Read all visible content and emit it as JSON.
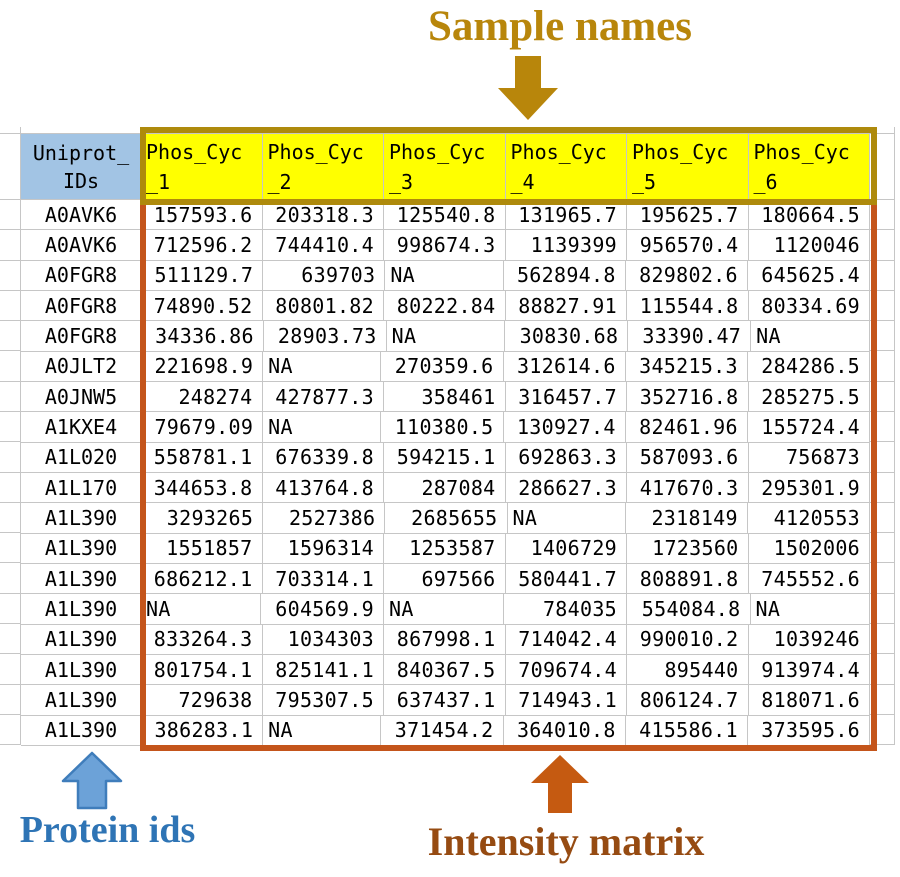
{
  "annotations": {
    "top_label": "Sample names",
    "bottom_left_label": "Protein ids",
    "bottom_center_label": "Intensity matrix"
  },
  "colors": {
    "title_gold": "#B8860B",
    "header_box_border": "#AE8A0C",
    "matrix_box_border": "#C4551B",
    "header_yellow": "#FFFF00",
    "id_header_blue": "#A2C4E4",
    "protein_label_blue": "#2E74B5",
    "blue_arrow_fill": "#6CA2D8",
    "blue_arrow_stroke": "#3F7DBB",
    "intensity_label_brown": "#964B12",
    "orange_arrow": "#C55A11",
    "gridline": "#C6C6C6"
  },
  "table": {
    "id_header_line1": "Uniprot_",
    "id_header_line2": "IDs",
    "sample_headers": [
      {
        "line1": "Phos_Cyc",
        "line2": "_1"
      },
      {
        "line1": "Phos_Cyc",
        "line2": "_2"
      },
      {
        "line1": "Phos_Cyc",
        "line2": "_3"
      },
      {
        "line1": "Phos_Cyc",
        "line2": "_4"
      },
      {
        "line1": "Phos_Cyc",
        "line2": "_5"
      },
      {
        "line1": "Phos_Cyc",
        "line2": "_6"
      }
    ],
    "rows": [
      {
        "id": "A0AVK6",
        "values": [
          "157593.6",
          "203318.3",
          "125540.8",
          "131965.7",
          "195625.7",
          "180664.5"
        ]
      },
      {
        "id": "A0AVK6",
        "values": [
          "712596.2",
          "744410.4",
          "998674.3",
          "1139399",
          "956570.4",
          "1120046"
        ]
      },
      {
        "id": "A0FGR8",
        "values": [
          "511129.7",
          "639703",
          "NA",
          "562894.8",
          "829802.6",
          "645625.4"
        ]
      },
      {
        "id": "A0FGR8",
        "values": [
          "74890.52",
          "80801.82",
          "80222.84",
          "88827.91",
          "115544.8",
          "80334.69"
        ]
      },
      {
        "id": "A0FGR8",
        "values": [
          "34336.86",
          "28903.73",
          "NA",
          "30830.68",
          "33390.47",
          "NA"
        ]
      },
      {
        "id": "A0JLT2",
        "values": [
          "221698.9",
          "NA",
          "270359.6",
          "312614.6",
          "345215.3",
          "284286.5"
        ]
      },
      {
        "id": "A0JNW5",
        "values": [
          "248274",
          "427877.3",
          "358461",
          "316457.7",
          "352716.8",
          "285275.5"
        ]
      },
      {
        "id": "A1KXE4",
        "values": [
          "79679.09",
          "NA",
          "110380.5",
          "130927.4",
          "82461.96",
          "155724.4"
        ]
      },
      {
        "id": "A1L020",
        "values": [
          "558781.1",
          "676339.8",
          "594215.1",
          "692863.3",
          "587093.6",
          "756873"
        ]
      },
      {
        "id": "A1L170",
        "values": [
          "344653.8",
          "413764.8",
          "287084",
          "286627.3",
          "417670.3",
          "295301.9"
        ]
      },
      {
        "id": "A1L390",
        "values": [
          "3293265",
          "2527386",
          "2685655",
          "NA",
          "2318149",
          "4120553"
        ]
      },
      {
        "id": "A1L390",
        "values": [
          "1551857",
          "1596314",
          "1253587",
          "1406729",
          "1723560",
          "1502006"
        ]
      },
      {
        "id": "A1L390",
        "values": [
          "686212.1",
          "703314.1",
          "697566",
          "580441.7",
          "808891.8",
          "745552.6"
        ]
      },
      {
        "id": "A1L390",
        "values": [
          "NA",
          "604569.9",
          "NA",
          "784035",
          "554084.8",
          "NA"
        ]
      },
      {
        "id": "A1L390",
        "values": [
          "833264.3",
          "1034303",
          "867998.1",
          "714042.4",
          "990010.2",
          "1039246"
        ]
      },
      {
        "id": "A1L390",
        "values": [
          "801754.1",
          "825141.1",
          "840367.5",
          "709674.4",
          "895440",
          "913974.4"
        ]
      },
      {
        "id": "A1L390",
        "values": [
          "729638",
          "795307.5",
          "637437.1",
          "714943.1",
          "806124.7",
          "818071.6"
        ]
      },
      {
        "id": "A1L390",
        "values": [
          "386283.1",
          "NA",
          "371454.2",
          "364010.8",
          "415586.1",
          "373595.6"
        ]
      }
    ]
  }
}
